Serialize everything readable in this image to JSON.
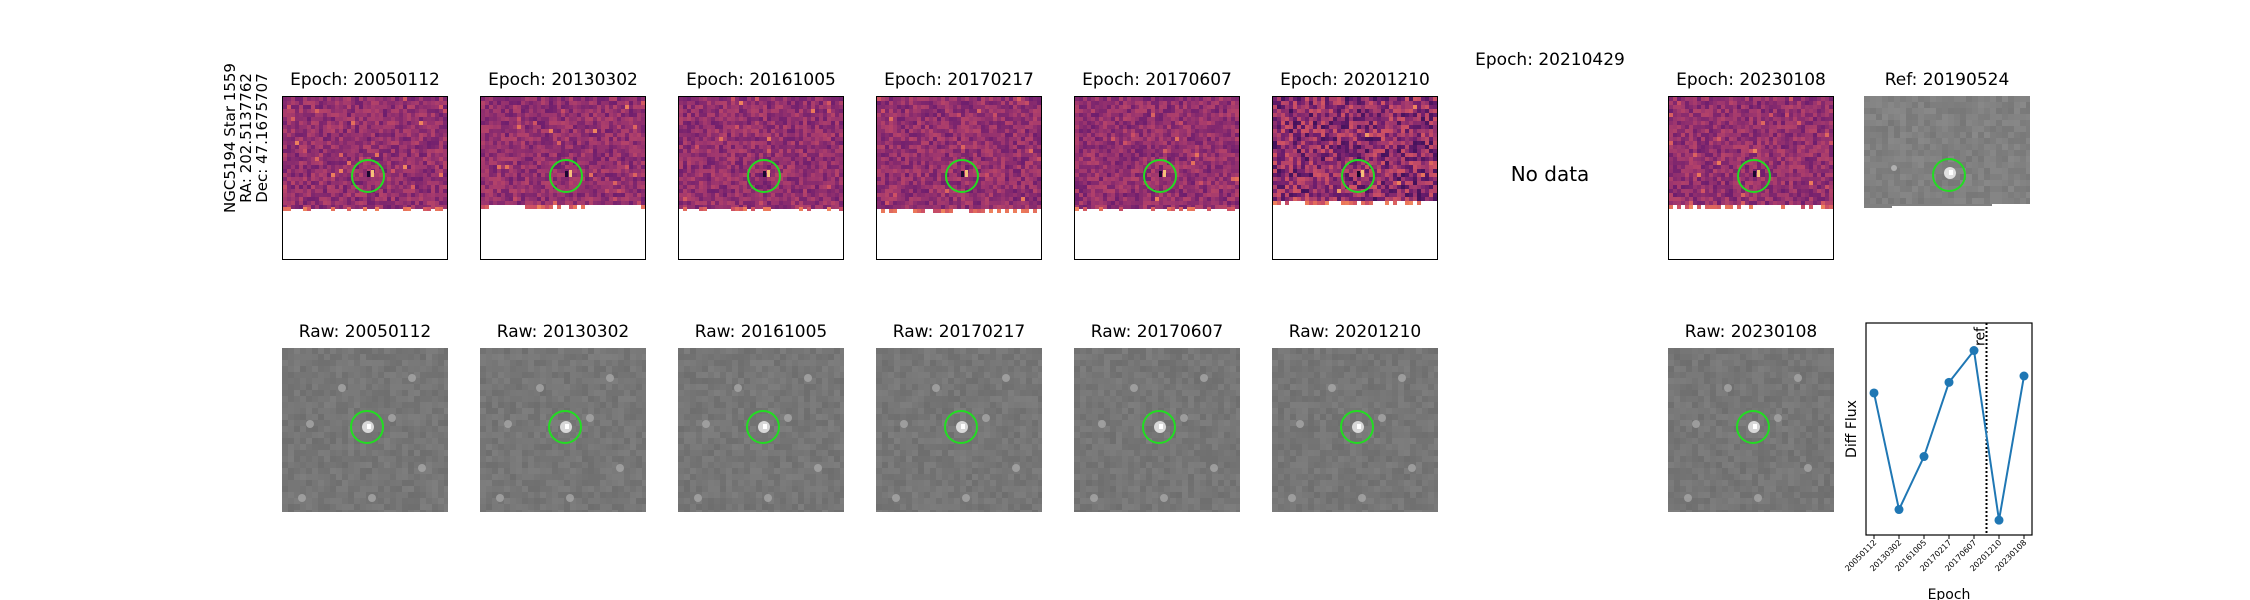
{
  "star_label": {
    "line1": "NGC5194 Star 1559",
    "line2": "RA: 202.5137762",
    "line3": "Dec: 47.1675707"
  },
  "diff_panels": [
    {
      "title": "Epoch: 20050112",
      "has_data": true
    },
    {
      "title": "Epoch: 20130302",
      "has_data": true
    },
    {
      "title": "Epoch: 20161005",
      "has_data": true
    },
    {
      "title": "Epoch: 20170217",
      "has_data": true
    },
    {
      "title": "Epoch: 20170607",
      "has_data": true
    },
    {
      "title": "Epoch: 20201210",
      "has_data": true
    },
    {
      "title": "Epoch: 20210429",
      "has_data": false,
      "message": "No data"
    },
    {
      "title": "Epoch: 20230108",
      "has_data": true
    }
  ],
  "ref_panel": {
    "title": "Ref: 20190524"
  },
  "raw_panels": [
    {
      "title": "Raw: 20050112"
    },
    {
      "title": "Raw: 20130302"
    },
    {
      "title": "Raw: 20161005"
    },
    {
      "title": "Raw: 20170217"
    },
    {
      "title": "Raw: 20170607"
    },
    {
      "title": "Raw: 20201210"
    },
    {
      "title": "Raw: 20230108"
    }
  ],
  "colors": {
    "circle": "#22dd22",
    "line": "#1f77b4",
    "diff_base": "#9a3a6e"
  },
  "chart_data": {
    "type": "line",
    "xlabel": "Epoch",
    "ylabel": "Diff Flux",
    "categories": [
      "20050112",
      "20130302",
      "20161005",
      "20170217",
      "20170607",
      "20201210",
      "20230108"
    ],
    "values": [
      0.67,
      0.12,
      0.37,
      0.72,
      0.87,
      0.07,
      0.75
    ],
    "ylim": [
      0,
      1
    ],
    "yticks_shown": false,
    "reference_line": {
      "label": "ref",
      "after_index": 4,
      "style": "dotted"
    }
  }
}
